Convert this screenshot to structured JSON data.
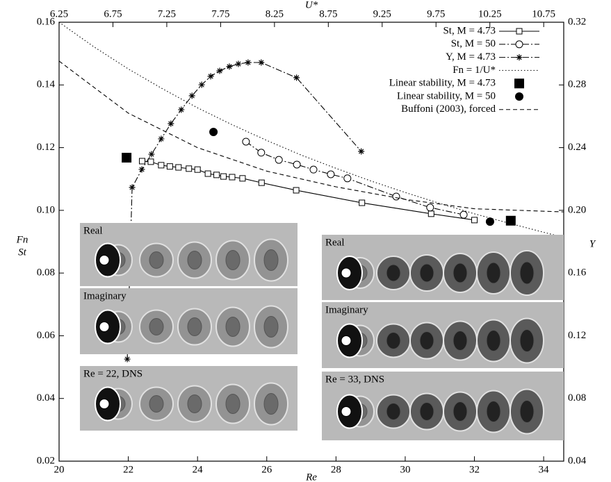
{
  "chart_data": {
    "type": "line",
    "x_label": "Re",
    "x2_label": "U*",
    "y_label": [
      "Fn",
      "St"
    ],
    "y2_label": "Y",
    "xlim": [
      20,
      34.58
    ],
    "xticks": [
      20,
      22,
      24,
      26,
      28,
      30,
      32,
      34
    ],
    "x2lim": [
      6.25,
      10.936
    ],
    "x2ticks": [
      6.25,
      6.75,
      7.25,
      7.75,
      8.25,
      8.75,
      9.25,
      9.75,
      10.25,
      10.75
    ],
    "ylim": [
      0.02,
      0.16
    ],
    "yticks": [
      0.02,
      0.04,
      0.06,
      0.08,
      {
        "value": 0.1,
        "label": "0.10"
      },
      0.12,
      0.14,
      0.16
    ],
    "y2lim": [
      0.04,
      0.32
    ],
    "y2ticks": [
      0.04,
      0.08,
      0.12,
      0.16,
      {
        "value": 0.2,
        "label": "0.20"
      },
      0.24,
      0.28,
      0.32
    ],
    "legend": "top-right",
    "series": [
      {
        "name": "St, M = 4.73",
        "color": "#000000",
        "line": "solid",
        "marker": "square-open",
        "x": [
          22.4,
          22.65,
          22.95,
          23.2,
          23.45,
          23.75,
          24,
          24.3,
          24.55,
          24.75,
          25,
          25.3,
          25.85,
          26.85,
          28.75,
          30.75,
          32
        ],
        "values": [
          0.1157,
          0.1155,
          0.1144,
          0.114,
          0.1137,
          0.1133,
          0.113,
          0.1117,
          0.1113,
          0.1108,
          0.1106,
          0.1102,
          0.1088,
          0.1064,
          0.1024,
          0.0989,
          0.0969
        ]
      },
      {
        "name": "St, M = 50",
        "color": "#000000",
        "line": "dashdot",
        "marker": "circle-open",
        "x": [
          25.4,
          25.84,
          26.35,
          26.87,
          27.35,
          27.85,
          28.33,
          29.74,
          30.72,
          31.69
        ],
        "values": [
          0.1219,
          0.1184,
          0.1161,
          0.1146,
          0.113,
          0.1115,
          0.1102,
          0.1044,
          0.1009,
          0.0986
        ]
      },
      {
        "name": "Y, M = 4.73",
        "color": "#000000",
        "line": "dashdot",
        "marker": "star",
        "axis": "y2",
        "x": [
          21.97,
          22.11,
          22.39,
          22.67,
          22.95,
          23.23,
          23.53,
          23.84,
          24.12,
          24.38,
          24.64,
          24.92,
          25.18,
          25.46,
          25.84,
          26.86,
          28.73
        ],
        "values": [
          0.1051,
          0.2146,
          0.2261,
          0.2358,
          0.2456,
          0.2553,
          0.2642,
          0.2731,
          0.2801,
          0.2855,
          0.289,
          0.2917,
          0.2934,
          0.2943,
          0.2943,
          0.2846,
          0.2376
        ]
      },
      {
        "name": "Fn = 1/U*",
        "color": "#000000",
        "line": "dotted",
        "marker": "none",
        "x": [
          20,
          21,
          22,
          23,
          24,
          25,
          26,
          27,
          28,
          29,
          30,
          31,
          32,
          33,
          34,
          34.58
        ],
        "values": [
          0.16,
          0.1522,
          0.1451,
          0.1387,
          0.1327,
          0.1273,
          0.1223,
          0.1176,
          0.1134,
          0.1094,
          0.1057,
          0.1022,
          0.0989,
          0.0959,
          0.093,
          0.0914
        ]
      },
      {
        "name": "Linear stability, M = 4.73",
        "color": "#000000",
        "line": "none",
        "marker": "square-filled",
        "x": [
          21.95,
          33.05
        ],
        "values": [
          0.1168,
          0.0967
        ]
      },
      {
        "name": "Linear stability, M = 50",
        "color": "#000000",
        "line": "none",
        "marker": "circle-filled",
        "x": [
          24.46,
          32.45
        ],
        "values": [
          0.125,
          0.0964
        ]
      },
      {
        "name": "Buffoni (2003), forced",
        "color": "#000000",
        "line": "dashed",
        "marker": "none",
        "x": [
          20,
          22,
          24,
          26,
          28,
          30,
          32,
          34.58
        ],
        "values": [
          0.1476,
          0.131,
          0.12,
          0.1125,
          0.1075,
          0.1035,
          0.1005,
          0.0995
        ]
      }
    ],
    "annotations": [
      "Real",
      "Imaginary",
      "Re = 22, DNS",
      "Real",
      "Imaginary",
      "Re = 33, DNS"
    ]
  }
}
